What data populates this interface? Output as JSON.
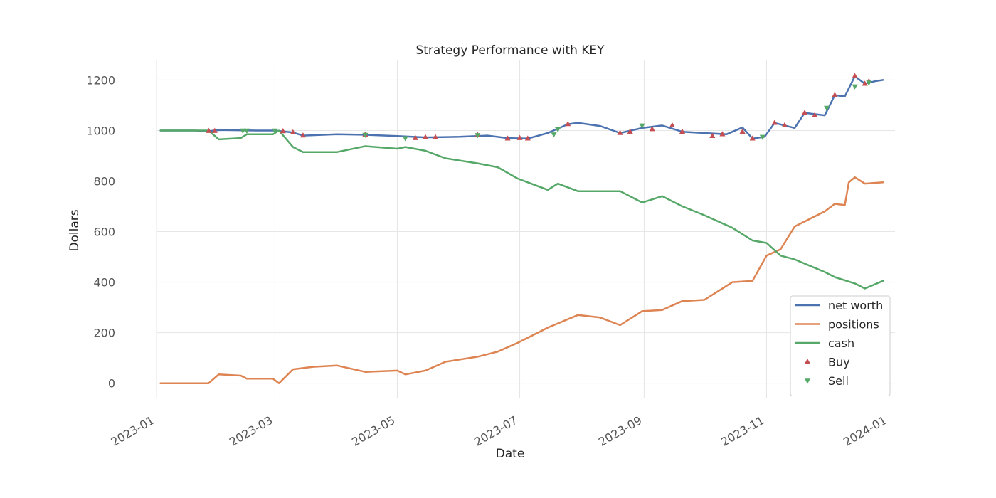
{
  "chart_data": {
    "type": "line",
    "title": "Strategy Performance with KEY",
    "xlabel": "Date",
    "ylabel": "Dollars",
    "x_ticks": [
      "2023-01",
      "2023-03",
      "2023-05",
      "2023-07",
      "2023-09",
      "2023-11",
      "2024-01"
    ],
    "y_ticks": [
      0,
      200,
      400,
      600,
      800,
      1000,
      1200
    ],
    "xlim": [
      "2023-01-01",
      "2024-01-04"
    ],
    "ylim": [
      -60,
      1280
    ],
    "grid": true,
    "legend_position": "lower-right",
    "series": [
      {
        "name": "net worth",
        "color": "#4c72b0",
        "points": [
          [
            "2023-01-03",
            1000
          ],
          [
            "2023-01-20",
            1000
          ],
          [
            "2023-01-27",
            998
          ],
          [
            "2023-02-02",
            1002
          ],
          [
            "2023-02-20",
            1000
          ],
          [
            "2023-03-01",
            1000
          ],
          [
            "2023-03-10",
            992
          ],
          [
            "2023-03-15",
            980
          ],
          [
            "2023-04-01",
            985
          ],
          [
            "2023-04-15",
            983
          ],
          [
            "2023-05-01",
            978
          ],
          [
            "2023-05-15",
            973
          ],
          [
            "2023-06-01",
            975
          ],
          [
            "2023-06-15",
            980
          ],
          [
            "2023-06-25",
            970
          ],
          [
            "2023-07-05",
            968
          ],
          [
            "2023-07-15",
            990
          ],
          [
            "2023-07-25",
            1025
          ],
          [
            "2023-07-30",
            1030
          ],
          [
            "2023-08-10",
            1018
          ],
          [
            "2023-08-20",
            990
          ],
          [
            "2023-08-31",
            1010
          ],
          [
            "2023-09-10",
            1020
          ],
          [
            "2023-09-20",
            995
          ],
          [
            "2023-10-01",
            990
          ],
          [
            "2023-10-12",
            985
          ],
          [
            "2023-10-20",
            1012
          ],
          [
            "2023-10-25",
            968
          ],
          [
            "2023-10-31",
            975
          ],
          [
            "2023-11-05",
            1030
          ],
          [
            "2023-11-15",
            1010
          ],
          [
            "2023-11-20",
            1070
          ],
          [
            "2023-11-30",
            1060
          ],
          [
            "2023-12-05",
            1140
          ],
          [
            "2023-12-10",
            1135
          ],
          [
            "2023-12-15",
            1215
          ],
          [
            "2023-12-20",
            1185
          ],
          [
            "2023-12-25",
            1195
          ],
          [
            "2023-12-29",
            1200
          ]
        ]
      },
      {
        "name": "positions",
        "color": "#dd8452",
        "points": [
          [
            "2023-01-03",
            0
          ],
          [
            "2023-01-20",
            0
          ],
          [
            "2023-01-27",
            0
          ],
          [
            "2023-02-01",
            35
          ],
          [
            "2023-02-12",
            30
          ],
          [
            "2023-02-15",
            18
          ],
          [
            "2023-02-28",
            18
          ],
          [
            "2023-03-03",
            0
          ],
          [
            "2023-03-10",
            55
          ],
          [
            "2023-03-20",
            65
          ],
          [
            "2023-04-01",
            70
          ],
          [
            "2023-04-15",
            45
          ],
          [
            "2023-05-01",
            50
          ],
          [
            "2023-05-05",
            35
          ],
          [
            "2023-05-15",
            50
          ],
          [
            "2023-05-25",
            85
          ],
          [
            "2023-06-10",
            105
          ],
          [
            "2023-06-20",
            125
          ],
          [
            "2023-06-30",
            160
          ],
          [
            "2023-07-15",
            220
          ],
          [
            "2023-07-30",
            270
          ],
          [
            "2023-08-10",
            260
          ],
          [
            "2023-08-20",
            230
          ],
          [
            "2023-08-31",
            285
          ],
          [
            "2023-09-10",
            290
          ],
          [
            "2023-09-20",
            325
          ],
          [
            "2023-10-01",
            330
          ],
          [
            "2023-10-15",
            400
          ],
          [
            "2023-10-25",
            405
          ],
          [
            "2023-11-01",
            505
          ],
          [
            "2023-11-08",
            530
          ],
          [
            "2023-11-15",
            620
          ],
          [
            "2023-11-30",
            680
          ],
          [
            "2023-12-05",
            710
          ],
          [
            "2023-12-10",
            705
          ],
          [
            "2023-12-12",
            795
          ],
          [
            "2023-12-15",
            815
          ],
          [
            "2023-12-20",
            790
          ],
          [
            "2023-12-29",
            795
          ]
        ]
      },
      {
        "name": "cash",
        "color": "#55a868",
        "points": [
          [
            "2023-01-03",
            1000
          ],
          [
            "2023-01-27",
            1000
          ],
          [
            "2023-02-01",
            965
          ],
          [
            "2023-02-12",
            970
          ],
          [
            "2023-02-15",
            985
          ],
          [
            "2023-02-28",
            985
          ],
          [
            "2023-03-03",
            1000
          ],
          [
            "2023-03-10",
            935
          ],
          [
            "2023-03-15",
            915
          ],
          [
            "2023-04-01",
            915
          ],
          [
            "2023-04-15",
            938
          ],
          [
            "2023-05-01",
            928
          ],
          [
            "2023-05-05",
            935
          ],
          [
            "2023-05-15",
            920
          ],
          [
            "2023-05-25",
            890
          ],
          [
            "2023-06-10",
            870
          ],
          [
            "2023-06-20",
            855
          ],
          [
            "2023-06-30",
            810
          ],
          [
            "2023-07-15",
            765
          ],
          [
            "2023-07-20",
            790
          ],
          [
            "2023-07-30",
            760
          ],
          [
            "2023-08-20",
            760
          ],
          [
            "2023-08-31",
            715
          ],
          [
            "2023-09-10",
            740
          ],
          [
            "2023-09-20",
            700
          ],
          [
            "2023-10-01",
            665
          ],
          [
            "2023-10-15",
            615
          ],
          [
            "2023-10-25",
            565
          ],
          [
            "2023-11-01",
            555
          ],
          [
            "2023-11-08",
            505
          ],
          [
            "2023-11-15",
            490
          ],
          [
            "2023-11-30",
            440
          ],
          [
            "2023-12-05",
            420
          ],
          [
            "2023-12-15",
            395
          ],
          [
            "2023-12-20",
            375
          ],
          [
            "2023-12-29",
            405
          ]
        ]
      }
    ],
    "markers": [
      {
        "name": "Buy",
        "color": "#c44e52",
        "points": [
          [
            "2023-01-27",
            998
          ],
          [
            "2023-01-30",
            998
          ],
          [
            "2023-03-05",
            997
          ],
          [
            "2023-03-10",
            992
          ],
          [
            "2023-03-15",
            980
          ],
          [
            "2023-04-15",
            983
          ],
          [
            "2023-05-10",
            970
          ],
          [
            "2023-05-15",
            973
          ],
          [
            "2023-05-20",
            973
          ],
          [
            "2023-06-10",
            982
          ],
          [
            "2023-06-25",
            968
          ],
          [
            "2023-07-01",
            970
          ],
          [
            "2023-07-05",
            968
          ],
          [
            "2023-07-25",
            1025
          ],
          [
            "2023-08-20",
            990
          ],
          [
            "2023-08-25",
            995
          ],
          [
            "2023-09-05",
            1005
          ],
          [
            "2023-09-15",
            1020
          ],
          [
            "2023-09-20",
            995
          ],
          [
            "2023-10-05",
            978
          ],
          [
            "2023-10-10",
            985
          ],
          [
            "2023-10-20",
            995
          ],
          [
            "2023-10-25",
            968
          ],
          [
            "2023-11-05",
            1030
          ],
          [
            "2023-11-10",
            1020
          ],
          [
            "2023-11-20",
            1070
          ],
          [
            "2023-11-25",
            1060
          ],
          [
            "2023-12-05",
            1140
          ],
          [
            "2023-12-15",
            1215
          ],
          [
            "2023-12-20",
            1185
          ],
          [
            "2023-12-22",
            1195
          ]
        ]
      },
      {
        "name": "Sell",
        "color": "#55a868",
        "points": [
          [
            "2023-02-13",
            1000
          ],
          [
            "2023-02-15",
            1000
          ],
          [
            "2023-03-01",
            1000
          ],
          [
            "2023-04-15",
            983
          ],
          [
            "2023-05-05",
            970
          ],
          [
            "2023-06-10",
            982
          ],
          [
            "2023-07-18",
            985
          ],
          [
            "2023-07-20",
            1005
          ],
          [
            "2023-08-31",
            1020
          ],
          [
            "2023-10-30",
            975
          ],
          [
            "2023-12-01",
            1090
          ],
          [
            "2023-12-15",
            1175
          ],
          [
            "2023-12-22",
            1190
          ]
        ]
      }
    ]
  }
}
